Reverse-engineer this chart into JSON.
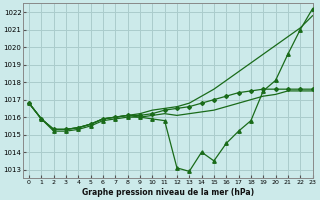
{
  "title": "Graphe pression niveau de la mer (hPa)",
  "background_color": "#cceaea",
  "grid_color": "#aacccc",
  "line_color": "#1a6b1a",
  "xlim": [
    -0.5,
    23
  ],
  "ylim": [
    1012.5,
    1022.5
  ],
  "yticks": [
    1013,
    1014,
    1015,
    1016,
    1017,
    1018,
    1019,
    1020,
    1021,
    1022
  ],
  "xticks": [
    0,
    1,
    2,
    3,
    4,
    5,
    6,
    7,
    8,
    9,
    10,
    11,
    12,
    13,
    14,
    15,
    16,
    17,
    18,
    19,
    20,
    21,
    22,
    23
  ],
  "series": [
    {
      "data": [
        1016.8,
        1015.9,
        1015.2,
        1015.2,
        1015.3,
        1015.5,
        1015.8,
        1015.9,
        1016.0,
        1016.0,
        1015.9,
        1015.8,
        1013.1,
        1012.9,
        1014.0,
        1013.5,
        1014.5,
        1015.2,
        1015.8,
        1017.5,
        1018.1,
        1019.6,
        1021.0,
        1022.2
      ],
      "marker": "^",
      "markersize": 2.5,
      "linewidth": 0.9,
      "has_markers": true
    },
    {
      "data": [
        1016.8,
        1015.9,
        1015.3,
        1015.3,
        1015.4,
        1015.6,
        1015.9,
        1016.0,
        1016.1,
        1016.1,
        1016.2,
        1016.4,
        1016.5,
        1016.6,
        1016.8,
        1017.0,
        1017.2,
        1017.4,
        1017.5,
        1017.6,
        1017.6,
        1017.6,
        1017.6,
        1017.6
      ],
      "marker": "D",
      "markersize": 2.0,
      "linewidth": 0.9,
      "has_markers": true
    },
    {
      "data": [
        1016.8,
        1015.9,
        1015.3,
        1015.3,
        1015.4,
        1015.6,
        1015.9,
        1016.0,
        1016.1,
        1016.2,
        1016.4,
        1016.5,
        1016.6,
        1016.8,
        1017.2,
        1017.6,
        1018.1,
        1018.6,
        1019.1,
        1019.6,
        1020.1,
        1020.6,
        1021.1,
        1021.8
      ],
      "marker": null,
      "markersize": 0,
      "linewidth": 0.9,
      "has_markers": false
    },
    {
      "data": [
        1016.8,
        1015.9,
        1015.3,
        1015.3,
        1015.4,
        1015.6,
        1015.9,
        1016.0,
        1016.1,
        1016.0,
        1016.1,
        1016.2,
        1016.1,
        1016.2,
        1016.3,
        1016.4,
        1016.6,
        1016.8,
        1017.0,
        1017.2,
        1017.3,
        1017.5,
        1017.5,
        1017.5
      ],
      "marker": null,
      "markersize": 0,
      "linewidth": 0.9,
      "has_markers": false
    }
  ]
}
